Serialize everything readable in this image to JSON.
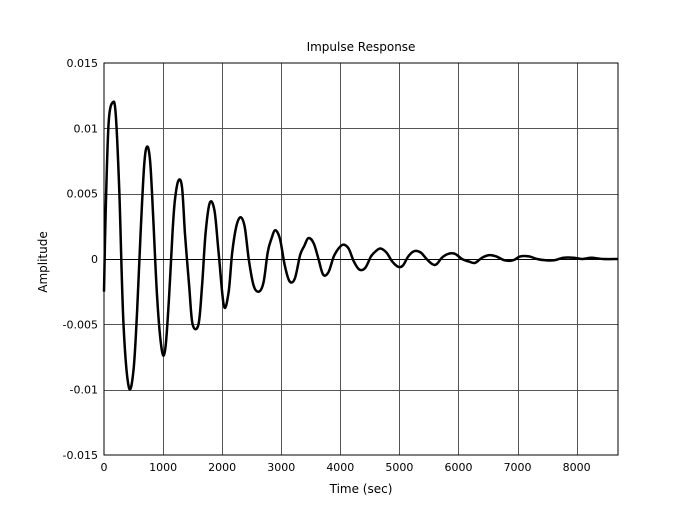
{
  "chart_data": {
    "type": "line",
    "title": "Impulse Response",
    "xlabel": "Time (sec)",
    "ylabel": "Amplitude",
    "xlim": [
      0,
      8700
    ],
    "ylim": [
      -0.015,
      0.015
    ],
    "grid": true,
    "x_ticks": [
      0,
      1000,
      2000,
      3000,
      4000,
      5000,
      6000,
      7000,
      8000
    ],
    "x_tick_labels": [
      "0",
      "1000",
      "2000",
      "3000",
      "4000",
      "5000",
      "6000",
      "7000",
      "8000"
    ],
    "y_ticks": [
      -0.015,
      -0.01,
      -0.005,
      0,
      0.005,
      0.01,
      0.015
    ],
    "y_tick_labels": [
      "-0.015",
      "-0.01",
      "-0.005",
      "0",
      "0.005",
      "0.01",
      "0.015"
    ],
    "series": [
      {
        "color": "#000000",
        "x": [
          0,
          30,
          80,
          150,
          200,
          260,
          330,
          420,
          500,
          560,
          620,
          680,
          730,
          780,
          830,
          900,
          980,
          1040,
          1100,
          1160,
          1200,
          1260,
          1320,
          1370,
          1440,
          1500,
          1600,
          1660,
          1720,
          1790,
          1870,
          1940,
          2030,
          2110,
          2170,
          2240,
          2310,
          2380,
          2450,
          2530,
          2620,
          2700,
          2770,
          2830,
          2900,
          2980,
          3060,
          3140,
          3230,
          3320,
          3390,
          3460,
          3550,
          3630,
          3710,
          3800,
          3890,
          3970,
          4050,
          4140,
          4230,
          4320,
          4420,
          4520,
          4600,
          4680,
          4780,
          4880,
          4980,
          5060,
          5150,
          5250,
          5360,
          5460,
          5560,
          5630,
          5720,
          5830,
          5940,
          6060,
          6180,
          6280,
          6400,
          6520,
          6640,
          6780,
          6920,
          7050,
          7190,
          7330,
          7480,
          7620,
          7780,
          7950,
          8100,
          8250,
          8450,
          8700
        ],
        "y": [
          -0.0025,
          0.004,
          0.0105,
          0.012,
          0.011,
          0.005,
          -0.005,
          -0.0098,
          -0.0085,
          -0.004,
          0.002,
          0.0072,
          0.0086,
          0.0075,
          0.0035,
          -0.003,
          -0.007,
          -0.0068,
          -0.003,
          0.002,
          0.0045,
          0.006,
          0.0055,
          0.002,
          -0.002,
          -0.005,
          -0.005,
          -0.002,
          0.002,
          0.0043,
          0.0037,
          0.0005,
          -0.0036,
          -0.0025,
          0.0005,
          0.0025,
          0.0032,
          0.0025,
          0.0,
          -0.002,
          -0.0025,
          -0.0018,
          0.0005,
          0.0015,
          0.0022,
          0.0015,
          -0.0005,
          -0.0017,
          -0.0015,
          0.0003,
          0.001,
          0.0016,
          0.0012,
          0.0,
          -0.0012,
          -0.001,
          0.0002,
          0.0008,
          0.0011,
          0.0008,
          -0.0002,
          -0.0008,
          -0.0007,
          0.0002,
          0.0006,
          0.0008,
          0.0005,
          -0.0002,
          -0.0006,
          -0.0005,
          0.0002,
          0.0006,
          0.0005,
          0.0,
          -0.0004,
          -0.0004,
          0.0001,
          0.0004,
          0.0004,
          0.0,
          -0.0002,
          -0.0003,
          0.0001,
          0.0003,
          0.0002,
          -0.0001,
          -0.0001,
          0.0002,
          0.0002,
          0.0,
          -0.0001,
          -0.0001,
          0.0001,
          0.0001,
          0.0,
          0.0001,
          0.0,
          0.0
        ]
      }
    ]
  }
}
